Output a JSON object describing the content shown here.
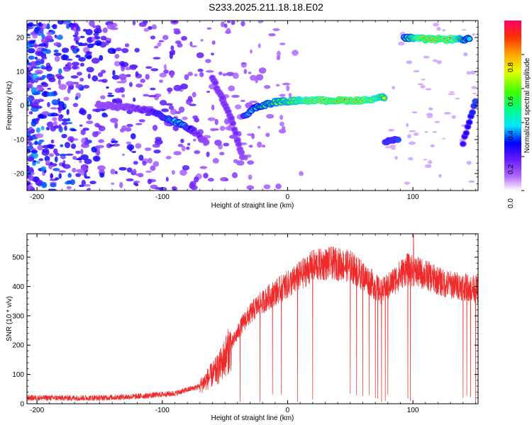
{
  "title": "S233.2025.211.18.18.E02",
  "colors": {
    "snr_line": "#ee2a2a",
    "track_low": "#8a2be2",
    "frame": "#000000"
  },
  "chart_data": [
    {
      "type": "heatmap",
      "xlabel": "Height of straight line (km)",
      "ylabel": "Frequency (Hz)",
      "xlim": [
        -208,
        152
      ],
      "ylim": [
        -25,
        25
      ],
      "xticks": [
        -200,
        -100,
        0,
        100
      ],
      "yticks": [
        -20,
        -10,
        0,
        10,
        20
      ],
      "x_tick_labels": [
        "-200",
        "-100",
        "0",
        "100"
      ],
      "y_tick_labels": [
        "-20",
        "-10",
        "0",
        "10",
        "20"
      ],
      "colorbar": {
        "label": "Normalized spectral amplitude",
        "range": [
          0.0,
          1.0
        ],
        "ticks": [
          0.0,
          0.2,
          0.4,
          0.6,
          0.8
        ],
        "tick_labels": [
          "0.0",
          "0.2",
          "0.4",
          "0.6",
          "0.8"
        ],
        "colormap": "rainbow"
      },
      "tracks": [
        {
          "points": [
            [
              -150,
              0.0,
              0.15
            ],
            [
              -130,
              -0.5,
              0.2
            ],
            [
              -110,
              -1.5,
              0.3
            ],
            [
              -95,
              -4.0,
              0.45
            ],
            [
              -85,
              -5.5,
              0.5
            ],
            [
              -75,
              -7.5,
              0.3
            ],
            [
              -65,
              -11.0,
              0.15
            ]
          ]
        },
        {
          "points": [
            [
              -60,
              8.0,
              0.2
            ],
            [
              -52,
              2.0,
              0.2
            ],
            [
              -45,
              -4.0,
              0.2
            ],
            [
              -40,
              -10.0,
              0.2
            ],
            [
              -36,
              -15.0,
              0.15
            ]
          ]
        },
        {
          "points": [
            [
              -35,
              -3.0,
              0.4
            ],
            [
              -25,
              -0.5,
              0.55
            ],
            [
              -10,
              1.0,
              0.65
            ],
            [
              10,
              1.5,
              0.75
            ],
            [
              40,
              1.5,
              0.95
            ],
            [
              60,
              1.5,
              0.9
            ],
            [
              77,
              2.5,
              0.7
            ]
          ]
        },
        {
          "points": [
            [
              93,
              20.0,
              0.5
            ],
            [
              110,
              19.5,
              0.95
            ],
            [
              130,
              19.5,
              0.9
            ],
            [
              145,
              19.5,
              0.5
            ]
          ]
        },
        {
          "points": [
            [
              78,
              -10.5,
              0.4
            ],
            [
              88,
              -10.0,
              0.4
            ]
          ]
        },
        {
          "points": [
            [
              140,
              -11.0,
              0.3
            ],
            [
              150,
              1.0,
              0.4
            ]
          ]
        }
      ]
    },
    {
      "type": "line",
      "xlabel": "Height of straight line (km)",
      "ylabel": "SNR (10 * v/v)",
      "xlim": [
        -208,
        152
      ],
      "ylim": [
        0,
        580
      ],
      "xticks": [
        -200,
        -100,
        0,
        100
      ],
      "yticks": [
        0,
        100,
        200,
        300,
        400,
        500
      ],
      "x_tick_labels": [
        "-200",
        "-100",
        "0",
        "100"
      ],
      "y_tick_labels": [
        "0",
        "100",
        "200",
        "300",
        "400",
        "500"
      ],
      "envelope": [
        [
          -208,
          20
        ],
        [
          -150,
          20
        ],
        [
          -120,
          25
        ],
        [
          -90,
          35
        ],
        [
          -70,
          60
        ],
        [
          -55,
          120
        ],
        [
          -45,
          200
        ],
        [
          -35,
          280
        ],
        [
          -25,
          330
        ],
        [
          -10,
          380
        ],
        [
          5,
          420
        ],
        [
          20,
          470
        ],
        [
          35,
          480
        ],
        [
          50,
          470
        ],
        [
          65,
          420
        ],
        [
          75,
          380
        ],
        [
          85,
          420
        ],
        [
          95,
          460
        ],
        [
          110,
          440
        ],
        [
          125,
          410
        ],
        [
          140,
          400
        ],
        [
          152,
          390
        ]
      ],
      "dropouts": [
        -38,
        -22,
        -12,
        -5,
        8,
        20,
        50,
        55,
        60,
        65,
        70,
        72,
        75,
        78,
        80,
        96,
        98,
        140,
        143,
        146,
        150
      ]
    }
  ]
}
